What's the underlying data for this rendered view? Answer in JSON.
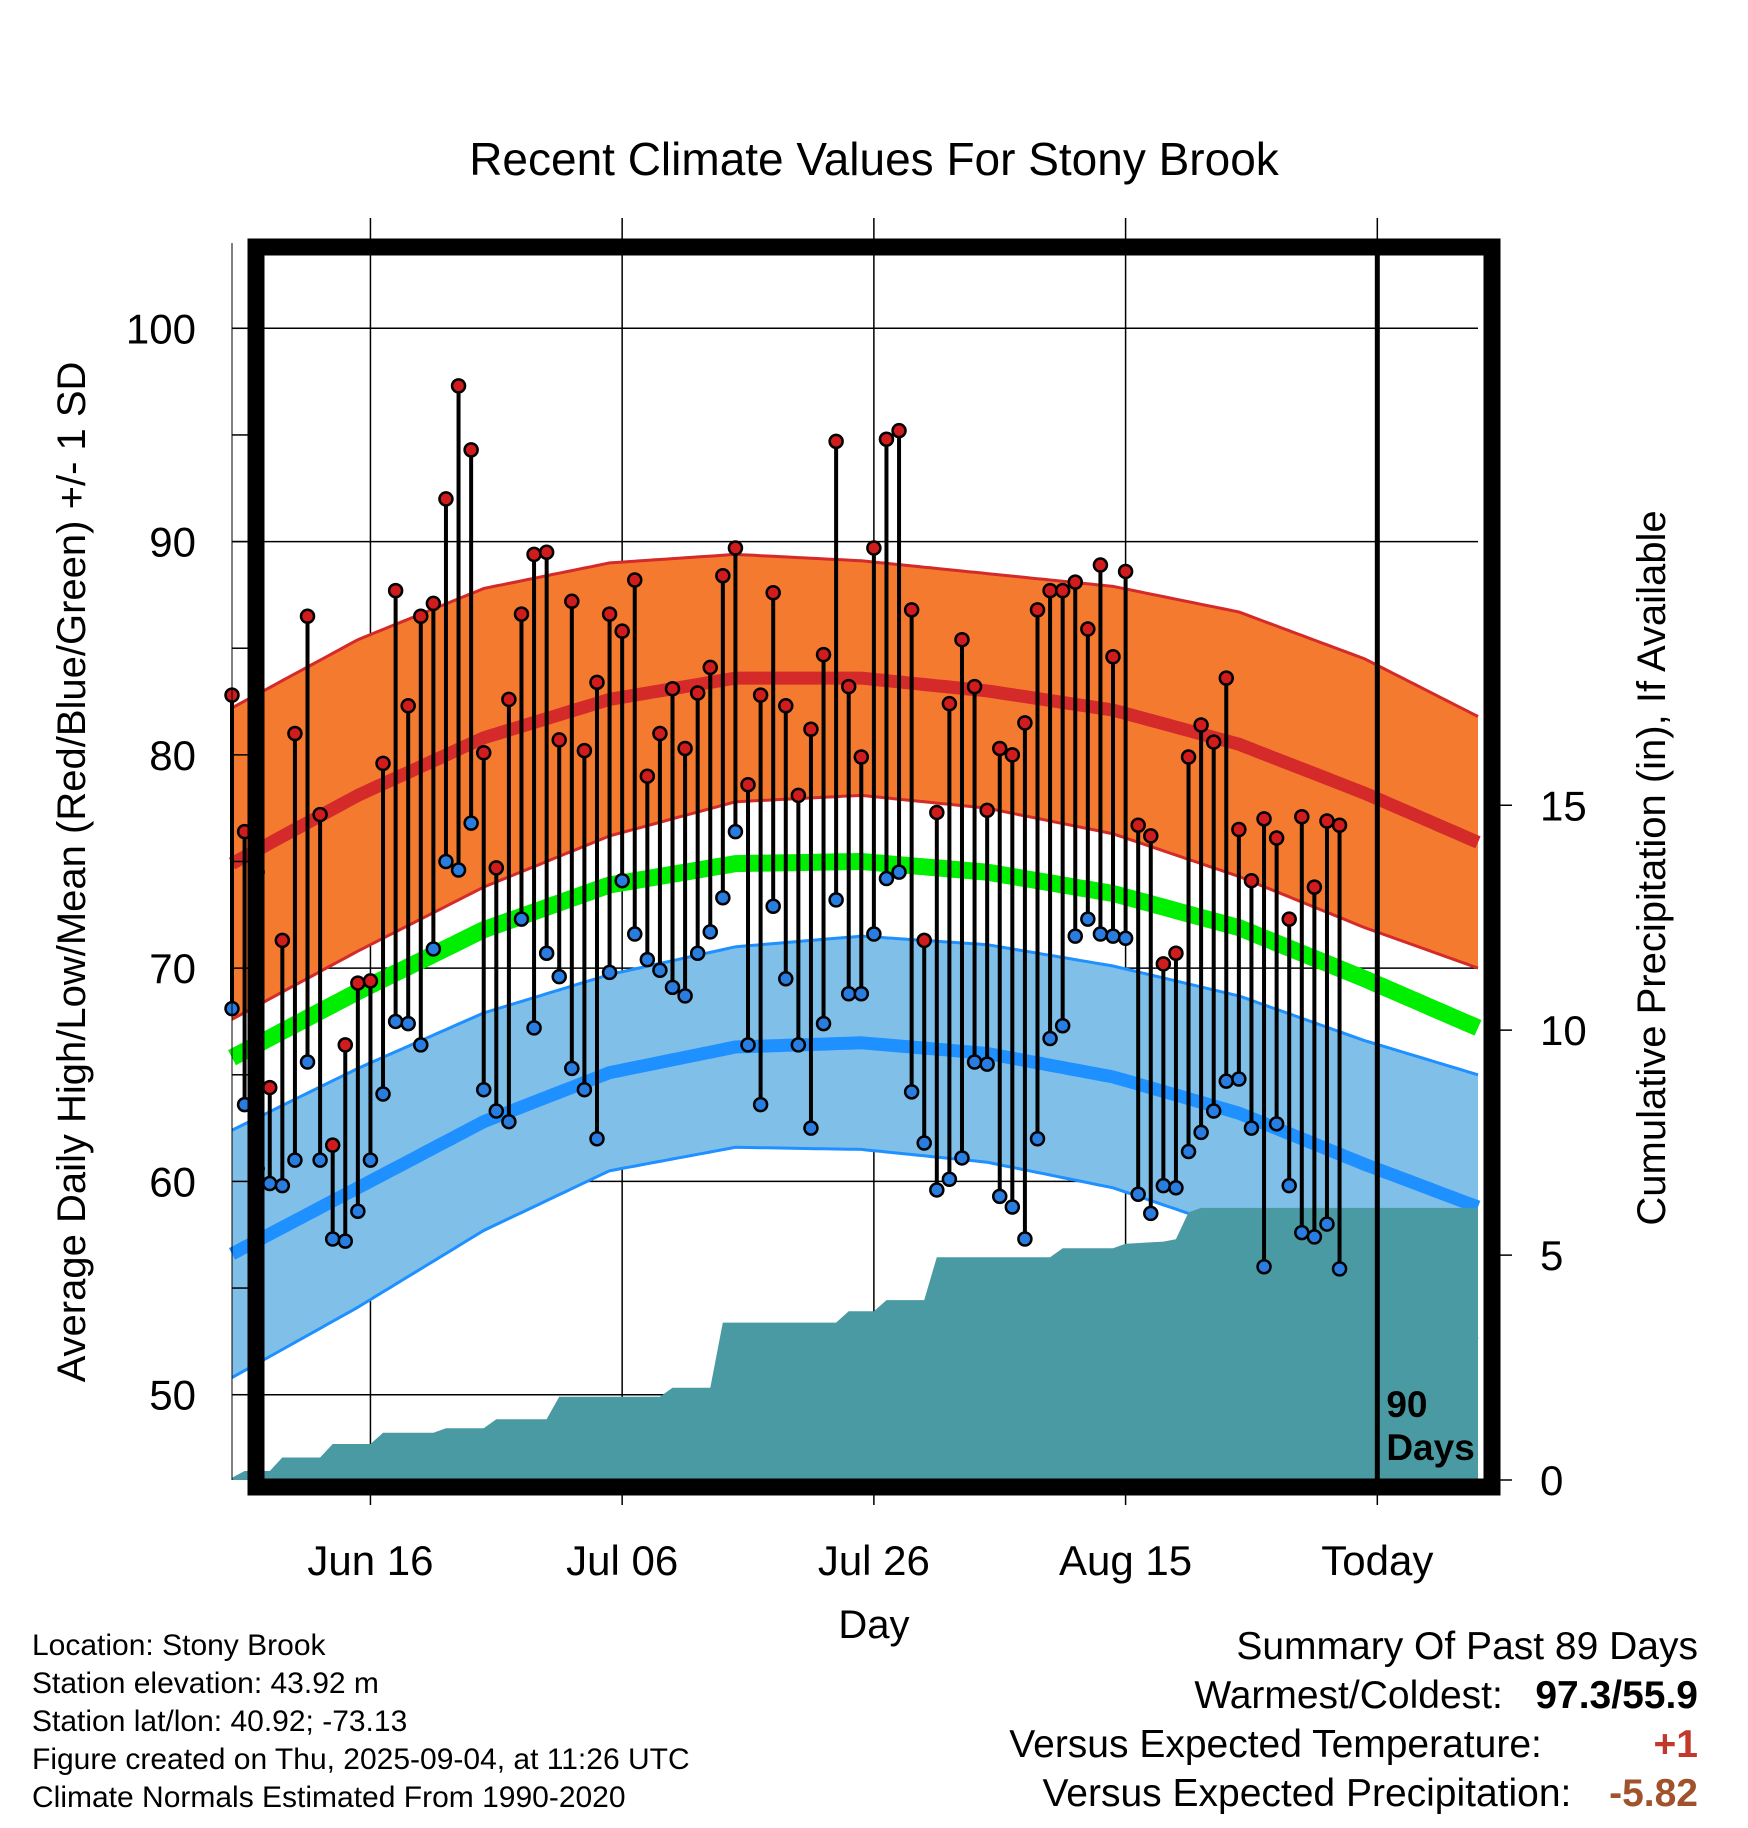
{
  "title": "Recent Climate Values For Stony Brook",
  "y_axis_label": "Average Daily High/Low/Mean (Red/Blue/Green) +/- 1 SD",
  "y2_axis_label": "Cumulative Precipitation (in), If Available",
  "x_axis_label": "Day",
  "today_marker": [
    "90",
    "Days"
  ],
  "footer": {
    "location": "Location: Stony Brook",
    "elevation": "Station elevation: 43.92 m",
    "latlon": "Station lat/lon: 40.92; -73.13",
    "created": "Figure created on Thu, 2025-09-04, at 11:26 UTC",
    "normals": "Climate Normals Estimated From 1990-2020"
  },
  "summary": {
    "heading": "Summary Of Past 89 Days",
    "warm_cold_label": "Warmest/Coldest:",
    "warm_value": "97.3",
    "slash": "/",
    "cold_value": "55.9",
    "temp_label": "Versus Expected Temperature:",
    "temp_value": "+1",
    "precip_label": "Versus Expected Precipitation:",
    "precip_value": "-5.82"
  },
  "colors": {
    "high_band": "#f47a30",
    "high_line": "#d42a2a",
    "low_band": "#80c0e8",
    "low_line": "#1e90ff",
    "mean_line": "#00ee00",
    "precip": "#4a9aa3",
    "high_marker": "#d01c1c",
    "low_marker": "#2a7de0",
    "temp_positive": "#c0392b",
    "precip_negative": "#a0522d"
  },
  "chart_data": {
    "type": "line",
    "x_range_days": [
      -90,
      9
    ],
    "x_ticks": [
      {
        "day": -79,
        "label": "Jun 16"
      },
      {
        "day": -59,
        "label": "Jul 06"
      },
      {
        "day": -39,
        "label": "Jul 26"
      },
      {
        "day": -19,
        "label": "Aug 15"
      },
      {
        "day": 1,
        "label": "Today"
      }
    ],
    "y_range": [
      46,
      104
    ],
    "y_ticks": [
      50,
      60,
      70,
      80,
      90,
      100
    ],
    "y2_range": [
      0,
      27.5
    ],
    "y2_ticks": [
      0,
      5,
      10,
      15
    ],
    "grid": true,
    "normals": {
      "days": [
        -90,
        -80,
        -70,
        -60,
        -50,
        -40,
        -30,
        -20,
        -10,
        0,
        9
      ],
      "high_mean": [
        74.9,
        78.1,
        80.8,
        82.6,
        83.6,
        83.6,
        83.0,
        82.1,
        80.5,
        78.2,
        75.9
      ],
      "high_sd": [
        7.3,
        7.3,
        7.0,
        6.4,
        5.8,
        5.5,
        5.5,
        5.8,
        6.2,
        6.3,
        5.9
      ],
      "low_mean": [
        56.6,
        59.7,
        62.8,
        65.1,
        66.3,
        66.5,
        66.0,
        64.9,
        63.2,
        60.8,
        58.8
      ],
      "low_sd": [
        5.8,
        5.6,
        5.1,
        4.6,
        4.7,
        5.0,
        5.1,
        5.2,
        5.5,
        5.8,
        6.2
      ],
      "mean": [
        65.8,
        68.9,
        71.8,
        73.9,
        74.9,
        75.0,
        74.5,
        73.5,
        71.9,
        69.5,
        67.2
      ]
    },
    "daily_highs": [
      82.8,
      76.4,
      74.5,
      64.4,
      71.3,
      81.0,
      86.5,
      77.2,
      61.7,
      66.4,
      69.3,
      69.4,
      79.6,
      87.7,
      82.3,
      86.5,
      87.1,
      92.0,
      97.3,
      94.3,
      80.1,
      74.7,
      82.6,
      86.6,
      89.4,
      89.5,
      80.7,
      87.2,
      80.2,
      83.4,
      86.6,
      85.8,
      88.2,
      79.0,
      81.0,
      83.1,
      80.3,
      82.9,
      84.1,
      88.4,
      89.7,
      78.6,
      82.8,
      87.6,
      82.3,
      78.1,
      81.2,
      84.7,
      94.7,
      83.2,
      79.9,
      89.7,
      94.8,
      95.2,
      86.8,
      71.3,
      77.3,
      82.4,
      85.4,
      83.2,
      77.4,
      80.3,
      80.0,
      81.5,
      86.8,
      87.7,
      87.7,
      88.1,
      85.9,
      88.9,
      84.6,
      88.6,
      76.7,
      76.2,
      70.2,
      70.7,
      79.9,
      81.4,
      80.6,
      83.6,
      76.5,
      74.1,
      77.0,
      76.1,
      72.3,
      77.1,
      73.8,
      76.9,
      76.7
    ],
    "daily_lows": [
      68.1,
      63.6,
      60.6,
      59.9,
      59.8,
      61.0,
      65.6,
      61.0,
      57.3,
      57.2,
      58.6,
      61.0,
      64.1,
      67.5,
      67.4,
      66.4,
      70.9,
      75.0,
      74.6,
      76.8,
      64.3,
      63.3,
      62.8,
      72.3,
      67.2,
      70.7,
      69.6,
      65.3,
      64.3,
      62.0,
      69.8,
      74.1,
      71.6,
      70.4,
      69.9,
      69.1,
      68.7,
      70.7,
      71.7,
      73.3,
      76.4,
      66.4,
      63.6,
      72.9,
      69.5,
      66.4,
      62.5,
      67.4,
      73.2,
      68.8,
      68.8,
      71.6,
      74.2,
      74.5,
      64.2,
      61.8,
      59.6,
      60.1,
      61.1,
      65.6,
      65.5,
      59.3,
      58.8,
      57.3,
      62.0,
      66.7,
      67.3,
      71.5,
      72.3,
      71.6,
      71.5,
      71.4,
      59.4,
      58.5,
      59.8,
      59.7,
      61.4,
      62.3,
      63.3,
      64.7,
      64.8,
      62.5,
      56.0,
      62.7,
      59.8,
      57.6,
      57.4,
      58.0,
      55.9
    ],
    "precip_cumulative_steps": [
      {
        "day": -90,
        "value": 0.05
      },
      {
        "day": -89,
        "value": 0.2
      },
      {
        "day": -87,
        "value": 0.2
      },
      {
        "day": -86,
        "value": 0.5
      },
      {
        "day": -83,
        "value": 0.5
      },
      {
        "day": -82,
        "value": 0.8
      },
      {
        "day": -79,
        "value": 0.8
      },
      {
        "day": -78,
        "value": 1.05
      },
      {
        "day": -74,
        "value": 1.05
      },
      {
        "day": -73,
        "value": 1.15
      },
      {
        "day": -70,
        "value": 1.15
      },
      {
        "day": -69,
        "value": 1.35
      },
      {
        "day": -65,
        "value": 1.35
      },
      {
        "day": -64,
        "value": 1.85
      },
      {
        "day": -56,
        "value": 1.85
      },
      {
        "day": -55,
        "value": 2.05
      },
      {
        "day": -52,
        "value": 2.05
      },
      {
        "day": -51,
        "value": 3.5
      },
      {
        "day": -42,
        "value": 3.5
      },
      {
        "day": -41,
        "value": 3.75
      },
      {
        "day": -39,
        "value": 3.75
      },
      {
        "day": -38,
        "value": 4.0
      },
      {
        "day": -35,
        "value": 4.0
      },
      {
        "day": -34,
        "value": 4.95
      },
      {
        "day": -25,
        "value": 4.95
      },
      {
        "day": -24,
        "value": 5.15
      },
      {
        "day": -20,
        "value": 5.15
      },
      {
        "day": -19,
        "value": 5.25
      },
      {
        "day": -16,
        "value": 5.3
      },
      {
        "day": -15,
        "value": 5.35
      },
      {
        "day": -14,
        "value": 5.95
      },
      {
        "day": -13,
        "value": 6.05
      },
      {
        "day": 9,
        "value": 6.05
      }
    ]
  }
}
